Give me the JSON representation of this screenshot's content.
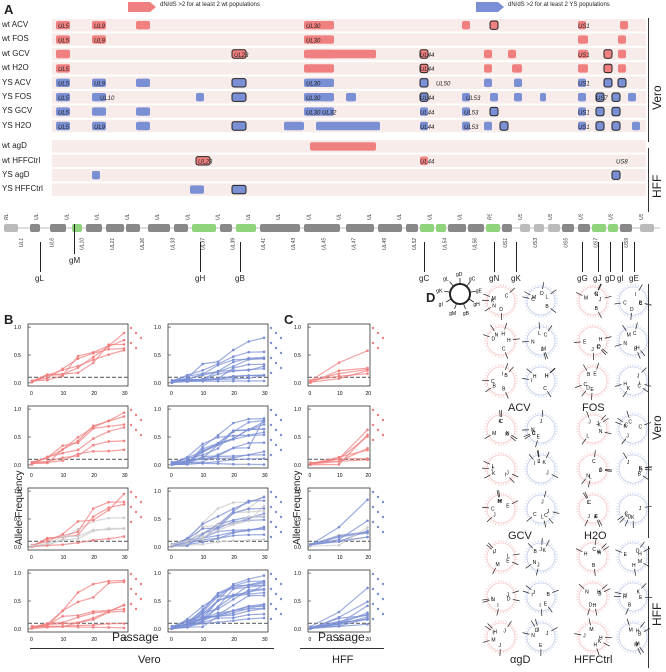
{
  "figure": {
    "panels": {
      "a": "A",
      "b": "B",
      "c": "C",
      "d": "D"
    },
    "legend": {
      "wt_text": "dN/dS >2 for at least 2 wt populations",
      "ys_text": "dN/dS >2 for at least 2 YS populations"
    },
    "rows": [
      "wt ACV",
      "wt FOS",
      "wt GCV",
      "wt H2O",
      "YS ACV",
      "YS FOS",
      "YS GCV",
      "YS H2O",
      "wt agD",
      "wt HFFCtrl",
      "YS agD",
      "YS HFFCtrl"
    ],
    "cell_lines": {
      "vero": "Vero",
      "hff": "HFF"
    },
    "gene_callouts": [
      "gL",
      "gM",
      "gH",
      "gB",
      "gC",
      "gN",
      "gK",
      "gG",
      "gJ",
      "gD",
      "gI",
      "gE"
    ],
    "inline_gene_labels": [
      "UL5",
      "UL9",
      "UL30",
      "UL23",
      "UL44",
      "UL10",
      "UL50",
      "UL53",
      "UL32",
      "US1",
      "US8",
      "US7"
    ],
    "genome_labels": [
      "RL2",
      "UL1",
      "UL5",
      "UL6",
      "UL8",
      "UL10",
      "UL15",
      "UL21",
      "UL24",
      "UL26",
      "UL30",
      "UL33",
      "UL36",
      "UL37",
      "UL38",
      "UL39",
      "UL40",
      "UL41",
      "UL42",
      "UL43",
      "UL44",
      "UL45",
      "UL46",
      "UL47",
      "UL48",
      "UL49",
      "UL50",
      "UL52",
      "UL53",
      "UL54",
      "UL55",
      "UL56",
      "RS1",
      "US1",
      "US2",
      "US3",
      "US4",
      "US5",
      "US6",
      "US7",
      "US8",
      "US9",
      "US10"
    ],
    "axes": {
      "ylabel": "Allele Frequency",
      "xlabel": "Passage",
      "yticks": [
        "0.0",
        "0.5",
        "1.0"
      ],
      "xticks_vero": [
        "0",
        "10",
        "20",
        "30"
      ],
      "xticks_hff": [
        "0",
        "10",
        "20"
      ]
    },
    "colors": {
      "wt": "#f08080",
      "ys": "#7b8fd4",
      "genome": "#8c8c8c",
      "glyco": "#8fd47b",
      "band": "#f7ecea"
    },
    "drugs": [
      "ACV",
      "FOS",
      "GCV",
      "H2O",
      "αgD",
      "HFFCtrl"
    ],
    "wheel_labels": [
      "gD",
      "gC",
      "gE",
      "gH",
      "gB",
      "gM",
      "gI",
      "gK",
      "gL"
    ]
  }
}
